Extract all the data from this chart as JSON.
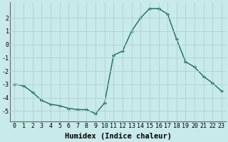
{
  "x": [
    0,
    1,
    2,
    3,
    4,
    5,
    6,
    7,
    8,
    9,
    10,
    11,
    12,
    13,
    14,
    15,
    16,
    17,
    18,
    19,
    20,
    21,
    22,
    23
  ],
  "y": [
    -3.0,
    -3.1,
    -3.6,
    -4.2,
    -4.5,
    -4.6,
    -4.8,
    -4.9,
    -4.9,
    -5.2,
    -4.4,
    -0.8,
    -0.5,
    1.0,
    2.0,
    2.7,
    2.7,
    2.3,
    0.4,
    -1.3,
    -1.7,
    -2.4,
    -2.9,
    -3.5
  ],
  "line_color": "#1a6b5a",
  "marker": "D",
  "marker_size": 2.0,
  "bg_color": "#c8eaea",
  "grid_color": "#b0d0d0",
  "xlabel": "Humidex (Indice chaleur)",
  "ylim": [
    -5.8,
    3.2
  ],
  "yticks": [
    -5,
    -4,
    -3,
    -2,
    -1,
    0,
    1,
    2
  ],
  "xlim": [
    -0.5,
    23.5
  ],
  "tick_fontsize": 6.0,
  "xlabel_fontsize": 7.5
}
